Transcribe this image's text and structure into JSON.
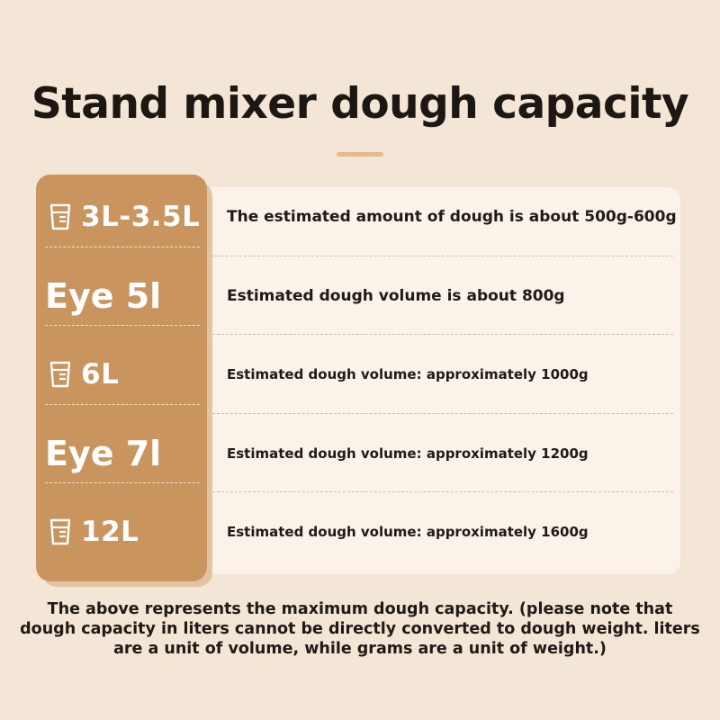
{
  "title": "Stand mixer dough capacity",
  "rows": [
    {
      "capacity": "3L-3.5L",
      "icon": "measuring-cup-icon",
      "description": "The estimated amount of dough is about 500g-600g"
    },
    {
      "capacity": "Eye 5l",
      "icon": "",
      "description": "Estimated dough volume is about 800g"
    },
    {
      "capacity": "6L",
      "icon": "measuring-cup-icon",
      "description": "Estimated dough volume: approximately 1000g"
    },
    {
      "capacity": "Eye 7l",
      "icon": "",
      "description": "Estimated dough volume: approximately 1200g"
    },
    {
      "capacity": "12L",
      "icon": "measuring-cup-icon",
      "description": "Estimated dough volume: approximately 1600g"
    }
  ],
  "note": {
    "line1": "The above represents the maximum dough capacity. (please note that",
    "line2": "dough capacity in liters cannot be directly converted to dough weight. liters",
    "line3": "are a unit of volume, while grams are a unit of weight.)"
  },
  "colors": {
    "background": "#f4e6d6",
    "capacity_panel": "#c9945e",
    "description_panel": "#fbf3ea",
    "accent": "#e6b98a",
    "text": "#1f1a16"
  }
}
